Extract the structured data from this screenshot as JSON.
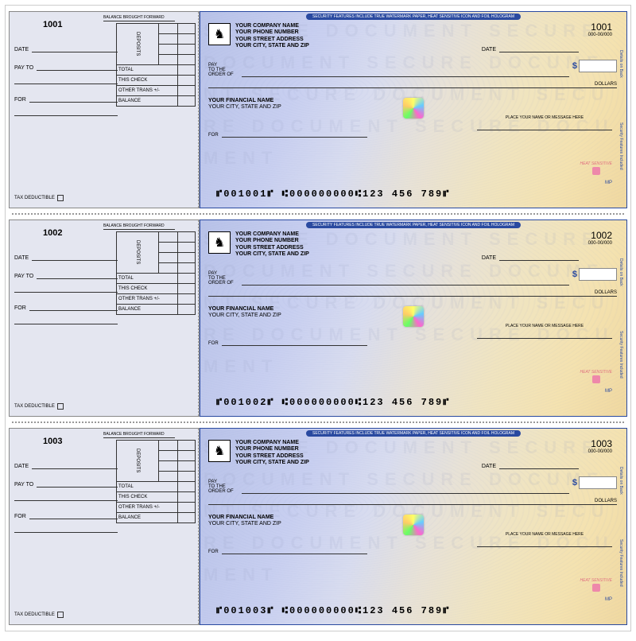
{
  "security_bar": "SECURITY FEATURES INCLUDE TRUE WATERMARK PAPER, HEAT SENSITIVE ICON AND FOIL HOLOGRAM",
  "watermark": "SECURE DOCUMENT SECURE DOCUMENT SECURE DOCUMENT SECURE DOCUMENT SECURE DOCUMENT SECURE DOCUMENT",
  "company": {
    "name": "YOUR COMPANY NAME",
    "phone": "YOUR PHONE NUMBER",
    "street": "YOUR STREET ADDRESS",
    "city": "YOUR CITY, STATE AND ZIP"
  },
  "financial": {
    "name": "YOUR FINANCIAL NAME",
    "city": "YOUR CITY, STATE AND ZIP"
  },
  "routing_display": "000-00/000",
  "labels": {
    "date": "DATE",
    "pay_to": "PAY TO",
    "pay_order": "PAY\nTO THE\nORDER OF",
    "for": "FOR",
    "dollars": "DOLLARS",
    "bbf": "BALANCE BROUGHT FORWARD",
    "deposits": "DEPOSITS",
    "total": "TOTAL",
    "this_check": "THIS CHECK",
    "other_trans": "OTHER TRANS +/-",
    "balance": "BALANCE",
    "tax_deductible": "TAX DEDUCTIBLE",
    "sig_placeholder": "PLACE YOUR NAME OR MESSAGE HERE",
    "heat": "HEAT SENSITIVE",
    "mp": "MP",
    "side1": "Details on Back",
    "side2": "Security Features Included",
    "dollar_sign": "$",
    "logo_glyph": "♞"
  },
  "checks": [
    {
      "num": "1001",
      "micr": "⑈001001⑈   ⑆000000000⑆123  456  789⑈"
    },
    {
      "num": "1002",
      "micr": "⑈001002⑈   ⑆000000000⑆123  456  789⑈"
    },
    {
      "num": "1003",
      "micr": "⑈001003⑈   ⑆000000000⑆123  456  789⑈"
    }
  ],
  "colors": {
    "border": "#2a4aa0",
    "stub_bg": "#e4e6f0",
    "grad_left": "#b8c2e8",
    "grad_right": "#f0d8a0",
    "heat": "#e07080"
  }
}
